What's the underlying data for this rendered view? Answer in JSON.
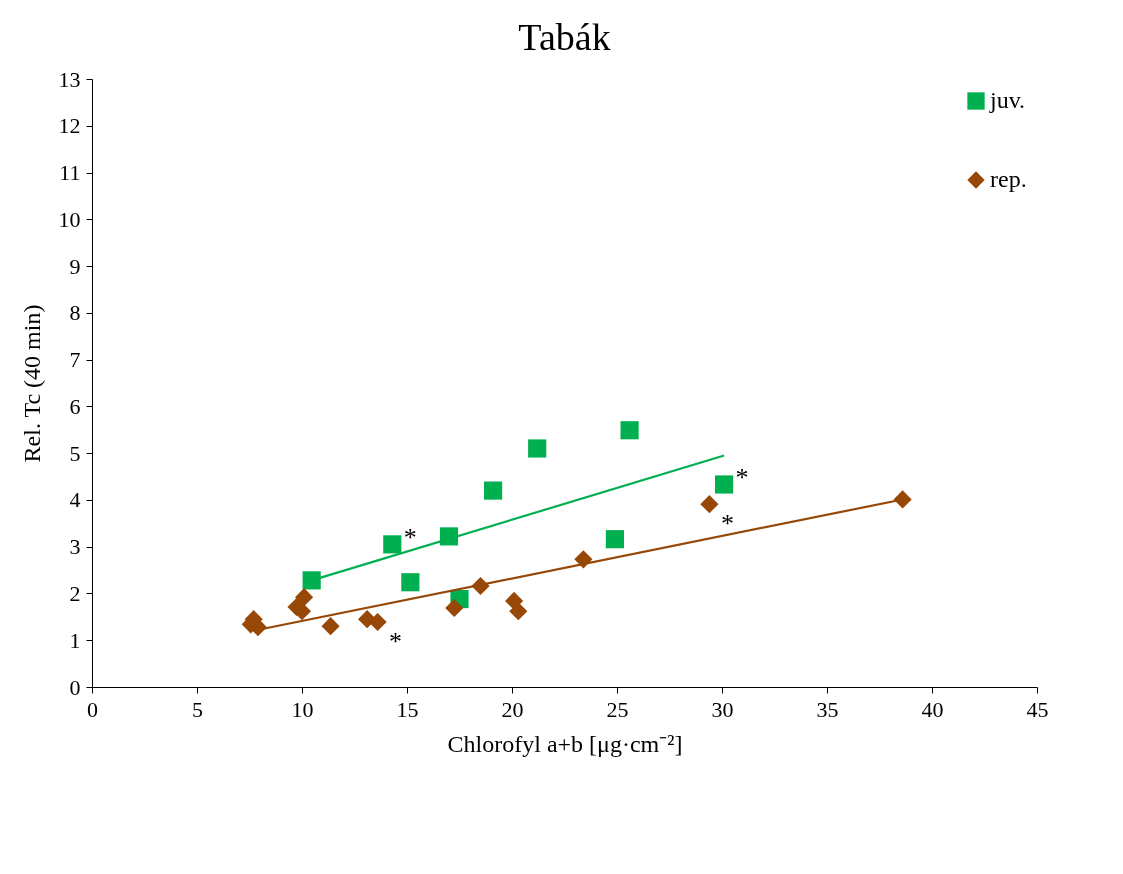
{
  "chart_data": {
    "type": "scatter",
    "title": "Tabák",
    "xlabel": "Chlorofyl a+b [μg·cm⁻²]",
    "ylabel": "Rel.  Tc (40 min)",
    "xlim": [
      0,
      45
    ],
    "xticks": [
      0,
      5,
      10,
      15,
      20,
      25,
      30,
      35,
      40,
      45
    ],
    "ylim": [
      0,
      13
    ],
    "yticks": [
      0,
      1,
      2,
      3,
      4,
      5,
      6,
      7,
      8,
      9,
      10,
      11,
      12,
      13
    ],
    "grid": false,
    "legend": "top right",
    "series": [
      {
        "name": "juv.",
        "type": "scatter",
        "marker": "square",
        "color": "#00b050",
        "x": [
          10.46,
          14.3,
          15.16,
          17.0,
          17.5,
          19.1,
          21.2,
          25.6,
          24.9,
          30.1
        ],
        "values": [
          2.28,
          3.05,
          2.24,
          3.22,
          1.88,
          4.2,
          5.1,
          5.49,
          3.16,
          4.33
        ]
      },
      {
        "name": "rep.",
        "type": "scatter",
        "marker": "diamond",
        "color": "#974706",
        "x": [
          7.56,
          7.7,
          7.9,
          9.74,
          10.1,
          10.0,
          11.36,
          13.1,
          13.6,
          17.25,
          18.5,
          20.1,
          20.3,
          23.4,
          29.4,
          38.6
        ],
        "values": [
          1.34,
          1.45,
          1.28,
          1.71,
          1.92,
          1.62,
          1.3,
          1.45,
          1.39,
          1.69,
          2.16,
          1.84,
          1.62,
          2.73,
          3.91,
          4.01
        ]
      },
      {
        "type": "line",
        "color": "#00b050",
        "x": [
          10.46,
          30.1
        ],
        "values": [
          2.28,
          4.95
        ]
      },
      {
        "type": "line",
        "color": "#974706",
        "x": [
          8.1,
          38.6
        ],
        "values": [
          1.24,
          4.01
        ]
      }
    ],
    "annotations": [
      {
        "text": "*",
        "x": 14.3,
        "y": 3.05
      },
      {
        "text": "*",
        "x": 30.1,
        "y": 4.33
      },
      {
        "text": "*",
        "x": 13.6,
        "y": 1.39
      },
      {
        "text": "*",
        "x": 29.4,
        "y": 3.91
      }
    ]
  }
}
